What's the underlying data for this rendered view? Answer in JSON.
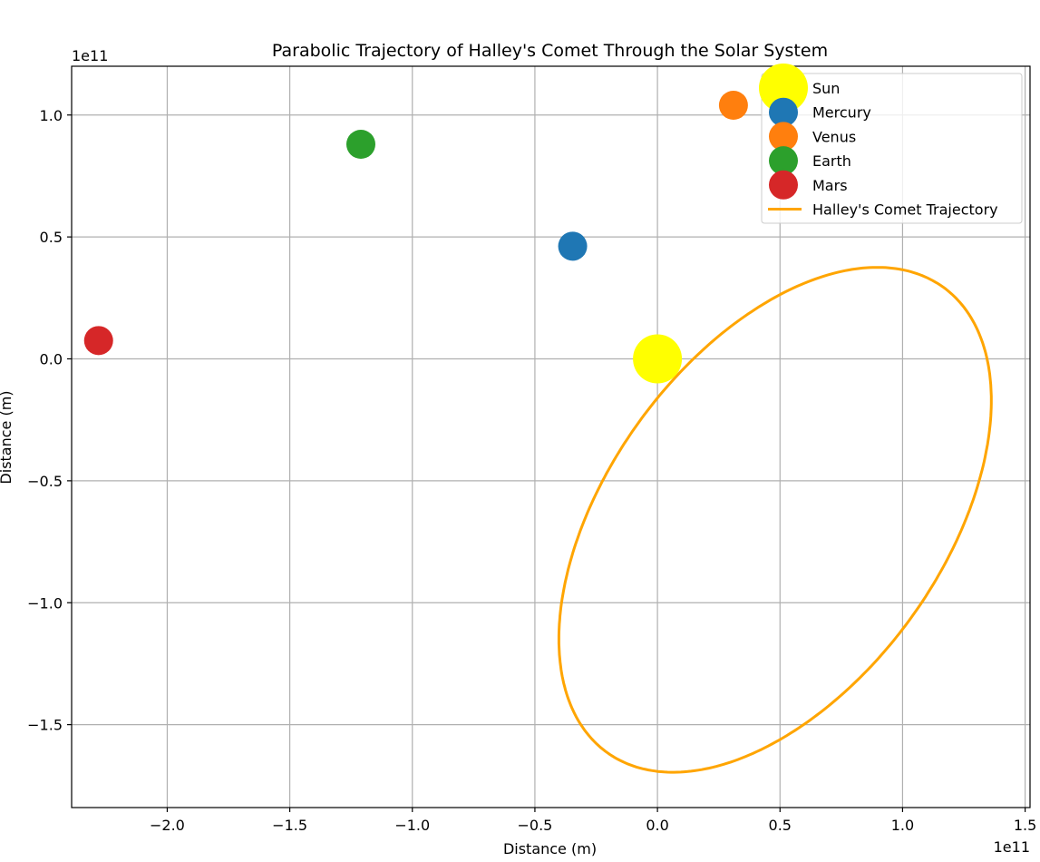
{
  "chart_data": {
    "type": "scatter",
    "title": "Parabolic Trajectory of Halley's Comet Through the Solar System",
    "xlabel": "Distance (m)",
    "ylabel": "Distance (m)",
    "x_offset_label": "1e11",
    "y_offset_label": "1e11",
    "xlim": [
      -2.39,
      1.52
    ],
    "ylim": [
      -1.84,
      1.2
    ],
    "x_ticks": [
      -2.0,
      -1.5,
      -1.0,
      -0.5,
      0.0,
      0.5,
      1.0,
      1.5
    ],
    "x_tick_labels": [
      "−2.0",
      "−1.5",
      "−1.0",
      "−0.5",
      "0.0",
      "0.5",
      "1.0",
      "1.5"
    ],
    "y_ticks": [
      -1.5,
      -1.0,
      -0.5,
      0.0,
      0.5,
      1.0
    ],
    "y_tick_labels": [
      "−1.5",
      "−1.0",
      "−0.5",
      "0.0",
      "0.5",
      "1.0"
    ],
    "grid": true,
    "legend_position": "upper-right",
    "bodies": [
      {
        "name": "Sun",
        "x": 0.0,
        "y": 0.0,
        "color": "#ffff00",
        "size": "large"
      },
      {
        "name": "Mercury",
        "x": -0.346,
        "y": 0.462,
        "color": "#1f77b4",
        "size": "medium"
      },
      {
        "name": "Venus",
        "x": 0.31,
        "y": 1.04,
        "color": "#ff7f0e",
        "size": "medium"
      },
      {
        "name": "Earth",
        "x": -1.21,
        "y": 0.88,
        "color": "#2ca02c",
        "size": "medium"
      },
      {
        "name": "Mars",
        "x": -2.28,
        "y": 0.075,
        "color": "#d62728",
        "size": "medium"
      }
    ],
    "trajectory": {
      "name": "Halley's Comet Trajectory",
      "color": "#ffa500",
      "shape": "ellipse",
      "center": [
        0.48,
        -0.66
      ],
      "semi_axes": [
        1.175,
        0.685
      ],
      "rotation_deg": 54.4
    }
  }
}
